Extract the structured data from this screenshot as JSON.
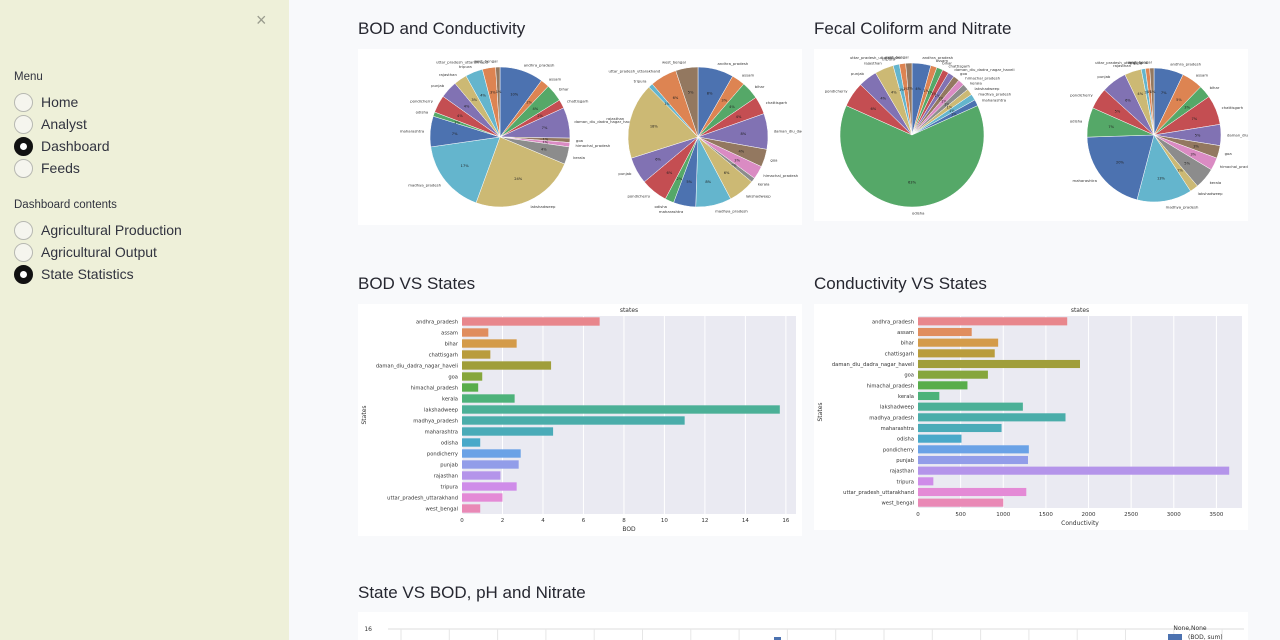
{
  "sidebar": {
    "close_glyph": "×",
    "menu_title": "Menu",
    "menu_items": [
      {
        "label": "Home",
        "selected": false
      },
      {
        "label": "Analyst",
        "selected": false
      },
      {
        "label": "Dashboard",
        "selected": true
      },
      {
        "label": "Feeds",
        "selected": false
      }
    ],
    "contents_title": "Dashboard contents",
    "contents_items": [
      {
        "label": "Agricultural Production",
        "selected": false
      },
      {
        "label": "Agricultural Output",
        "selected": false
      },
      {
        "label": "State Statistics",
        "selected": true
      }
    ]
  },
  "sections": {
    "bod_conductivity": "BOD and Conductivity",
    "fecal_nitrate": "Fecal Coliform and Nitrate",
    "bod_vs_states": "BOD VS States",
    "conductivity_vs_states": "Conductivity VS States",
    "state_vs_bod_ph_nitrate": "State VS BOD, pH and Nitrate"
  },
  "colors": {
    "sidebar_bg": "#eef0d9",
    "page_bg": "#f8f9fb",
    "radio_selected": "#111111",
    "plot_bg": "#eaeaf2"
  },
  "states": [
    "andhra_pradesh",
    "assam",
    "bihar",
    "chattisgarh",
    "daman_diu_dadra_nagar_haveli",
    "goa",
    "himachal_pradesh",
    "kerala",
    "lakshadweep",
    "madhya_pradesh",
    "maharashtra",
    "odisha",
    "pondicherry",
    "punjab",
    "rajasthan",
    "tripura",
    "uttar_pradesh_uttarakhand",
    "west_bengal"
  ],
  "chart_data": [
    {
      "type": "bar",
      "orientation": "horizontal",
      "title": "states",
      "xlabel": "BOD",
      "ylabel": "States",
      "xlim": [
        0,
        16.5
      ],
      "xticks": [
        0,
        2,
        4,
        6,
        8,
        10,
        12,
        14,
        16
      ],
      "categories": [
        "andhra_pradesh",
        "assam",
        "bihar",
        "chattisgarh",
        "daman_diu_dadra_nagar_haveli",
        "goa",
        "himachal_pradesh",
        "kerala",
        "lakshadweep",
        "madhya_pradesh",
        "maharashtra",
        "odisha",
        "pondicherry",
        "punjab",
        "rajasthan",
        "tripura",
        "uttar_pradesh_uttarakhand",
        "west_bengal"
      ],
      "values": [
        6.8,
        1.3,
        2.7,
        1.4,
        4.4,
        1.0,
        0.8,
        2.6,
        15.7,
        11.0,
        4.5,
        0.9,
        2.9,
        2.8,
        1.9,
        2.7,
        2.0,
        0.9
      ]
    },
    {
      "type": "bar",
      "orientation": "horizontal",
      "title": "states",
      "xlabel": "Conductivity",
      "ylabel": "States",
      "xlim": [
        0,
        3800
      ],
      "xticks": [
        0,
        500,
        1000,
        1500,
        2000,
        2500,
        3000,
        3500
      ],
      "categories": [
        "andhra_pradesh",
        "assam",
        "bihar",
        "chattisgarh",
        "daman_diu_dadra_nagar_haveli",
        "goa",
        "himachal_pradesh",
        "kerala",
        "lakshadweep",
        "madhya_pradesh",
        "maharashtra",
        "odisha",
        "pondicherry",
        "punjab",
        "rajasthan",
        "tripura",
        "uttar_pradesh_uttarakhand",
        "west_bengal"
      ],
      "values": [
        1750,
        630,
        940,
        900,
        1900,
        820,
        580,
        250,
        1230,
        1730,
        980,
        510,
        1300,
        1290,
        3650,
        180,
        1270,
        1000
      ]
    },
    {
      "type": "pie",
      "categories": [
        "andhra_pradesh",
        "assam",
        "bihar",
        "chattisgarh",
        "daman_diu_dadra_nagar_haveli",
        "goa",
        "himachal_pradesh",
        "kerala",
        "lakshadweep",
        "madhya_pradesh",
        "maharashtra",
        "odisha",
        "pondicherry",
        "punjab",
        "rajasthan",
        "tripura",
        "uttar_pradesh_uttarakhand",
        "west_bengal"
      ],
      "values": [
        10,
        2,
        4,
        2,
        7,
        1,
        1,
        4,
        24,
        17,
        7,
        1,
        4,
        4,
        3,
        4,
        3,
        1
      ]
    },
    {
      "type": "pie",
      "categories": [
        "andhra_pradesh",
        "assam",
        "bihar",
        "chattisgarh",
        "daman_diu_dadra_nagar_haveli",
        "goa",
        "himachal_pradesh",
        "kerala",
        "lakshadweep",
        "madhya_pradesh",
        "maharashtra",
        "odisha",
        "pondicherry",
        "punjab",
        "rajasthan",
        "tripura",
        "uttar_pradesh_uttarakhand",
        "west_bengal"
      ],
      "values": [
        8,
        3,
        4,
        4,
        8,
        4,
        3,
        1,
        6,
        8,
        5,
        2,
        6,
        6,
        17,
        1,
        6,
        5
      ]
    },
    {
      "type": "pie",
      "categories": [
        "andhra_pradesh",
        "assam",
        "bihar",
        "chattisgarh",
        "daman_diu_dadra_nagar_haveli",
        "goa",
        "himachal_pradesh",
        "kerala",
        "lakshadweep",
        "madhya_pradesh",
        "maharashtra",
        "odisha",
        "pondicherry",
        "punjab",
        "rajasthan",
        "tripura",
        "uttar_pradesh_uttarakhand",
        "west_bengal"
      ],
      "values": [
        3,
        1,
        1,
        1,
        1,
        1,
        1,
        1,
        1,
        1,
        1,
        45,
        4,
        3,
        3,
        1,
        1,
        1
      ]
    },
    {
      "type": "pie",
      "categories": [
        "andhra_pradesh",
        "assam",
        "bihar",
        "chattisgarh",
        "daman_diu_dadra_nagar_haveli",
        "goa",
        "himachal_pradesh",
        "kerala",
        "lakshadweep",
        "madhya_pradesh",
        "maharashtra",
        "odisha",
        "pondicherry",
        "punjab",
        "rajasthan",
        "tripura",
        "uttar_pradesh_uttarakhand",
        "west_bengal"
      ],
      "values": [
        7,
        5,
        3,
        7,
        5,
        3,
        3,
        5,
        2,
        13,
        20,
        7,
        5,
        6,
        4,
        1,
        1,
        1
      ]
    },
    {
      "type": "bar",
      "legend_title": "None,None",
      "legend": [
        "(BOD, sum)"
      ],
      "yticks": [
        16
      ]
    }
  ]
}
